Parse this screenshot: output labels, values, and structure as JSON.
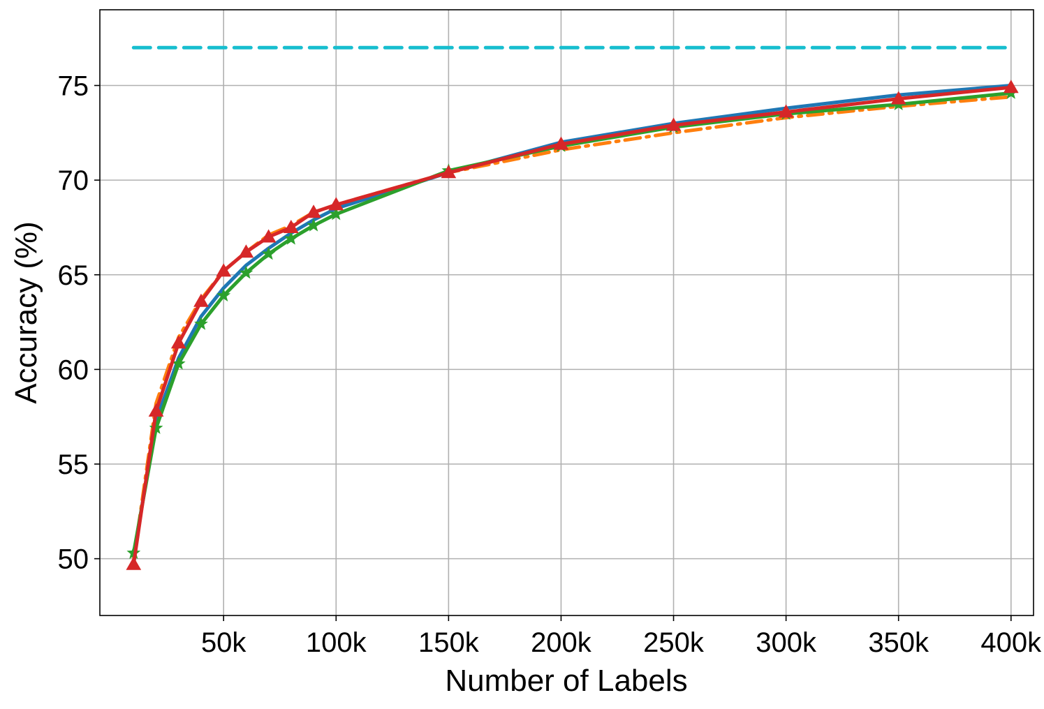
{
  "chart_data": {
    "type": "line",
    "title": "",
    "xlabel": "Number of Labels",
    "ylabel": "Accuracy (%)",
    "xlim": [
      -5000,
      410000
    ],
    "ylim": [
      47,
      79
    ],
    "x_ticks": [
      50000,
      100000,
      150000,
      200000,
      250000,
      300000,
      350000,
      400000
    ],
    "x_tick_labels": [
      "50k",
      "100k",
      "150k",
      "200k",
      "250k",
      "300k",
      "350k",
      "400k"
    ],
    "y_ticks": [
      50,
      55,
      60,
      65,
      70,
      75
    ],
    "y_tick_labels": [
      "50",
      "55",
      "60",
      "65",
      "70",
      "75"
    ],
    "grid": true,
    "series": [
      {
        "color": "#17becf",
        "style": "dashed",
        "marker": "none",
        "x": [
          10000,
          400000
        ],
        "y": [
          77.0,
          77.0
        ]
      },
      {
        "color": "#1f77b4",
        "style": "solid",
        "marker": "none",
        "x": [
          10000,
          20000,
          30000,
          40000,
          50000,
          60000,
          70000,
          80000,
          90000,
          100000,
          150000,
          200000,
          250000,
          300000,
          350000,
          400000
        ],
        "y": [
          50.1,
          57.3,
          60.6,
          62.8,
          64.3,
          65.5,
          66.4,
          67.2,
          67.9,
          68.5,
          70.4,
          72.0,
          73.0,
          73.8,
          74.5,
          75.0
        ]
      },
      {
        "color": "#ff7f0e",
        "style": "dashdot",
        "marker": "none",
        "x": [
          10000,
          20000,
          30000,
          40000,
          50000,
          60000,
          70000,
          80000,
          90000,
          100000,
          150000,
          200000,
          250000,
          300000,
          350000,
          400000
        ],
        "y": [
          49.9,
          58.2,
          61.7,
          63.7,
          65.2,
          66.2,
          67.1,
          67.6,
          68.3,
          68.7,
          70.4,
          71.6,
          72.5,
          73.3,
          73.9,
          74.4
        ]
      },
      {
        "color": "#2ca02c",
        "style": "solid",
        "marker": "star",
        "x": [
          10000,
          20000,
          30000,
          40000,
          50000,
          60000,
          70000,
          80000,
          90000,
          100000,
          150000,
          200000,
          250000,
          300000,
          350000,
          400000
        ],
        "y": [
          50.3,
          56.9,
          60.3,
          62.4,
          63.9,
          65.1,
          66.1,
          66.9,
          67.6,
          68.2,
          70.5,
          71.8,
          72.8,
          73.5,
          74.0,
          74.6
        ]
      },
      {
        "color": "#d62728",
        "style": "solid",
        "marker": "triangle",
        "x": [
          10000,
          20000,
          30000,
          40000,
          50000,
          60000,
          70000,
          80000,
          90000,
          100000,
          150000,
          200000,
          250000,
          300000,
          350000,
          400000
        ],
        "y": [
          49.7,
          57.8,
          61.4,
          63.6,
          65.2,
          66.2,
          67.0,
          67.5,
          68.3,
          68.7,
          70.4,
          71.9,
          72.9,
          73.6,
          74.3,
          74.9
        ]
      }
    ]
  }
}
